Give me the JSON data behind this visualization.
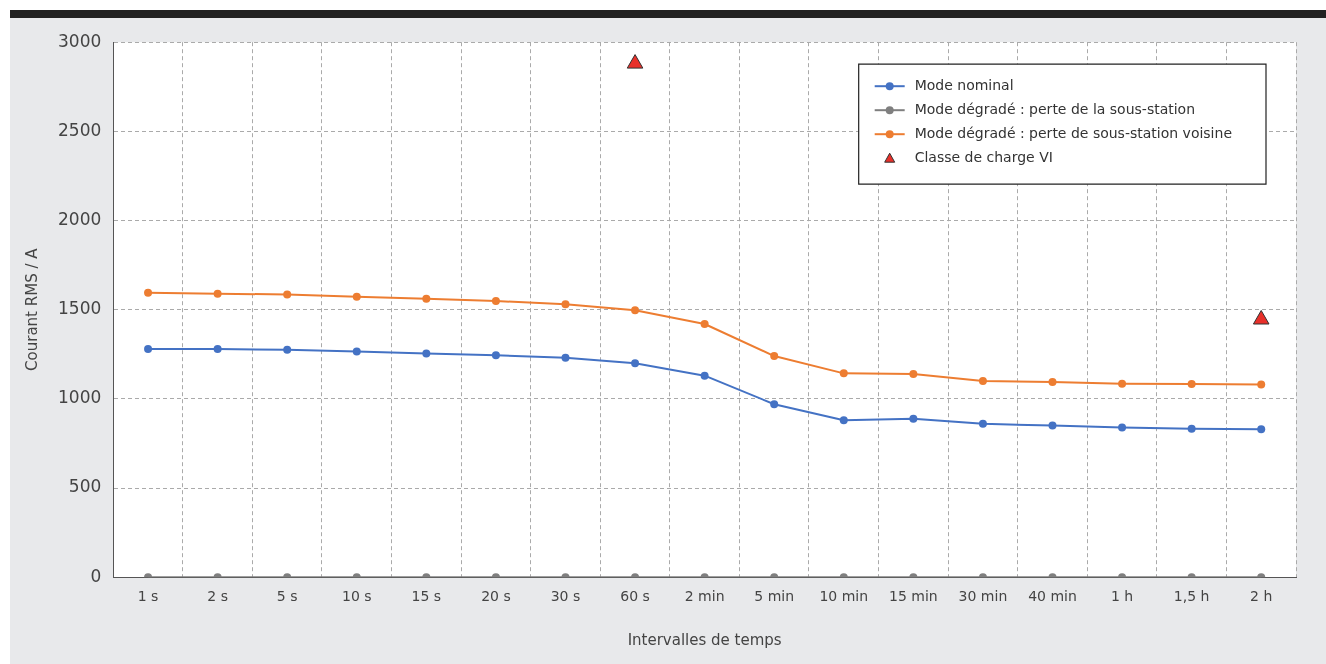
{
  "chart_data": {
    "type": "line",
    "xlabel": "Intervalles de temps",
    "ylabel": "Courant RMS / A",
    "categories": [
      "1 s",
      "2 s",
      "5 s",
      "10 s",
      "15 s",
      "20 s",
      "30 s",
      "60 s",
      "2 min",
      "5 min",
      "10 min",
      "15 min",
      "30 min",
      "40 min",
      "1 h",
      "1,5 h",
      "2 h"
    ],
    "series": [
      {
        "name": "Mode nominal",
        "color": "#4472c4",
        "marker": "circle",
        "values": [
          1280,
          1280,
          1275,
          1265,
          1255,
          1245,
          1230,
          1200,
          1130,
          970,
          880,
          888,
          860,
          850,
          840,
          832,
          830
        ]
      },
      {
        "name": "Mode dégradé : perte de la sous-station",
        "color": "#7f7f7f",
        "marker": "circle",
        "values": [
          0,
          0,
          0,
          0,
          0,
          0,
          0,
          0,
          0,
          0,
          0,
          0,
          0,
          0,
          0,
          0,
          0
        ]
      },
      {
        "name": "Mode dégradé : perte de sous-station voisine",
        "color": "#ed7d31",
        "marker": "circle",
        "values": [
          1595,
          1590,
          1585,
          1573,
          1561,
          1549,
          1530,
          1497,
          1420,
          1240,
          1143,
          1139,
          1100,
          1095,
          1085,
          1083,
          1080
        ]
      },
      {
        "name": "Classe de charge VI",
        "type": "scatter",
        "color": "#e8302a",
        "marker": "triangle",
        "values": [
          null,
          null,
          null,
          null,
          null,
          null,
          null,
          2880,
          null,
          null,
          null,
          null,
          null,
          null,
          null,
          null,
          1445
        ]
      }
    ],
    "ylim": [
      0,
      3000
    ],
    "yticks": [
      0,
      500,
      1000,
      1500,
      2000,
      2500,
      3000
    ],
    "grid": true,
    "legend": "top right"
  }
}
